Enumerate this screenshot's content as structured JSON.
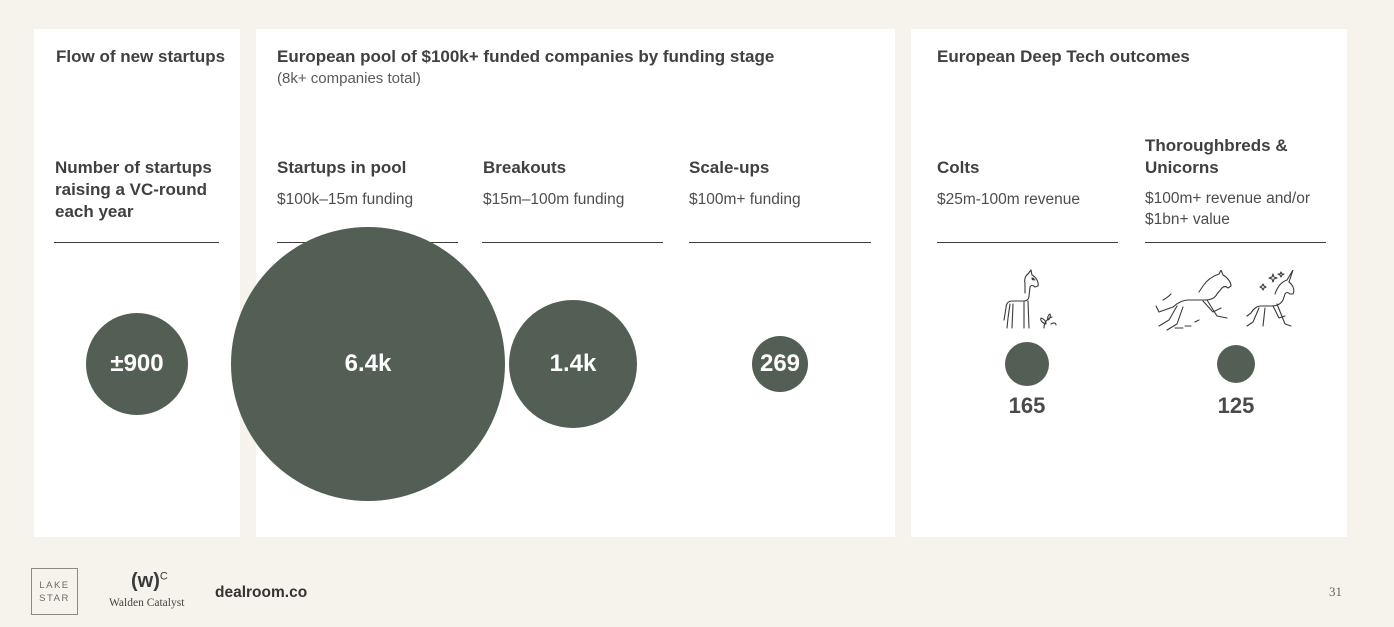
{
  "panels": {
    "flow": {
      "title": "Flow of new startups",
      "column": {
        "heading": "Number of startups raising a VC-round each year"
      }
    },
    "pool": {
      "title": "European pool of $100k+ funded companies by funding stage",
      "subtitle": "(8k+ companies total)",
      "columns": [
        {
          "heading": "Startups in pool",
          "desc": "$100k–15m funding"
        },
        {
          "heading": "Breakouts",
          "desc": "$15m–100m funding"
        },
        {
          "heading": "Scale-ups",
          "desc": "$100m+ funding"
        }
      ]
    },
    "deeptech": {
      "title": "European Deep Tech outcomes",
      "columns": [
        {
          "heading": "Colts",
          "desc": "$25m-100m revenue"
        },
        {
          "heading": "Thoroughbreds & Unicorns",
          "desc": "$100m+ revenue and/or $1bn+ value"
        }
      ]
    }
  },
  "chart_data": {
    "type": "bubble",
    "title": "European pool of $100k+ funded companies by funding stage",
    "series": [
      {
        "name": "Number of startups raising a VC-round each year",
        "value": 900,
        "label": "±900"
      },
      {
        "name": "Startups in pool",
        "value": 6400,
        "label": "6.4k"
      },
      {
        "name": "Breakouts",
        "value": 1400,
        "label": "1.4k"
      },
      {
        "name": "Scale-ups",
        "value": 269,
        "label": "269"
      },
      {
        "name": "Colts",
        "value": 165,
        "label": "165"
      },
      {
        "name": "Thoroughbreds & Unicorns",
        "value": 125,
        "label": "125"
      }
    ]
  },
  "icons": {
    "colt": "horse-foal-icon",
    "thoroughbred": "running-horse-icon",
    "unicorn": "unicorn-icon"
  },
  "colors": {
    "bubble": "#535f54",
    "background": "#f6f3ec",
    "panel": "#ffffff"
  },
  "footer": {
    "lakestar_line1": "LAKE",
    "lakestar_line2": "STAR",
    "walden_mark": "(w)",
    "walden_sup": "C",
    "walden_name": "Walden Catalyst",
    "dealroom": "dealroom.co",
    "page_number": "31"
  }
}
